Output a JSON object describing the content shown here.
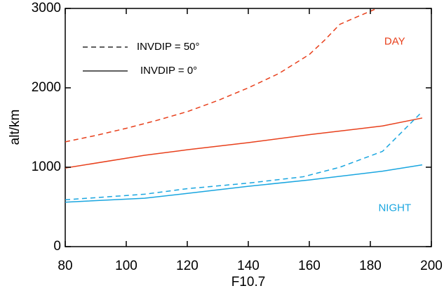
{
  "chart_data": {
    "type": "line",
    "x_label": "F10.7",
    "y_label": "alt/km",
    "xlim": [
      80,
      200
    ],
    "xticks": [
      80,
      100,
      120,
      140,
      160,
      180,
      200
    ],
    "ylim": [
      0,
      3000
    ],
    "yticks": [
      0,
      1000,
      2000,
      3000
    ],
    "series": [
      {
        "color": "#e8401c",
        "dashed": true,
        "x": [
          80,
          90,
          100,
          110,
          120,
          130,
          140,
          150,
          160,
          165,
          170,
          176,
          184,
          190,
          197
        ],
        "values": [
          1320,
          1400,
          1490,
          1590,
          1700,
          1840,
          2000,
          2180,
          2420,
          2600,
          2800,
          2900,
          3030,
          3030,
          3030
        ]
      },
      {
        "color": "#e8401c",
        "dashed": false,
        "x": [
          80,
          106,
          120,
          140,
          160,
          184,
          197
        ],
        "values": [
          990,
          1150,
          1220,
          1310,
          1410,
          1520,
          1620
        ]
      },
      {
        "color": "#1aa6e0",
        "dashed": true,
        "x": [
          80,
          106,
          120,
          140,
          158,
          170,
          184,
          197
        ],
        "values": [
          590,
          660,
          730,
          800,
          880,
          1000,
          1200,
          1700
        ]
      },
      {
        "color": "#1aa6e0",
        "dashed": false,
        "x": [
          80,
          106,
          120,
          140,
          160,
          184,
          197
        ],
        "values": [
          560,
          610,
          670,
          760,
          840,
          950,
          1030
        ]
      }
    ],
    "legend": [
      {
        "label": "INVDIP = 50°",
        "dashed": true
      },
      {
        "label": "INVDIP = 0°",
        "dashed": false
      }
    ],
    "annotations": [
      {
        "text": "DAY",
        "color": "#e8401c",
        "x": 188,
        "y": 2580
      },
      {
        "text": "NIGHT",
        "color": "#1aa6e0",
        "x": 188,
        "y": 480
      }
    ]
  }
}
